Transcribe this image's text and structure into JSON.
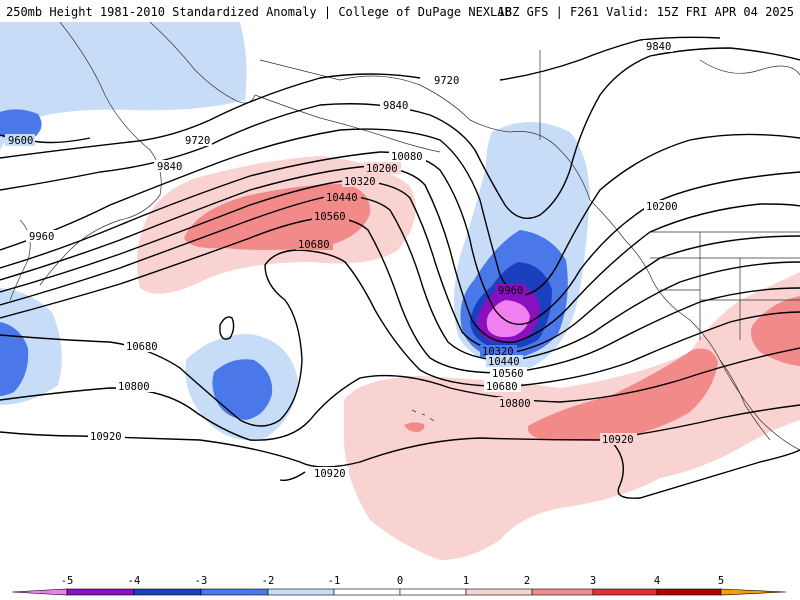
{
  "header": {
    "title": "250mb Height 1981-2010 Standardized Anomaly | College of DuPage NEXLAB",
    "run_info": "18Z GFS | F261 Valid: 15Z FRI APR 04 2025"
  },
  "contour_labels": {
    "c9600": "9600",
    "c9720a": "9720",
    "c9720b": "9720",
    "c9840a": "9840",
    "c9840b": "9840",
    "c9840c": "9840",
    "c9960a": "9960",
    "c9960b": "9960",
    "c10080": "10080",
    "c10200a": "10200",
    "c10200b": "10200",
    "c10320a": "10320",
    "c10320b": "10320",
    "c10440a": "10440",
    "c10440b": "10440",
    "c10560a": "10560",
    "c10560b": "10560",
    "c10680a": "10680",
    "c10680b": "10680",
    "c10680c": "10680",
    "c10800a": "10800",
    "c10800b": "10800",
    "c10920a": "10920",
    "c10920b": "10920",
    "c10920c": "10920"
  },
  "colorbar": {
    "ticks": [
      "-5",
      "-4",
      "-3",
      "-2",
      "-1",
      "0",
      "1",
      "2",
      "3",
      "4",
      "5"
    ],
    "colors": {
      "m5": "#f07ff0",
      "m4": "#8a0fbf",
      "m3": "#1a3fbf",
      "m2": "#4a78e8",
      "m1": "#c7ddf7",
      "p1": "#f9d2d2",
      "p2": "#f28a8a",
      "p3": "#e0303a",
      "p4": "#b00000",
      "p5": "#f5a000"
    }
  }
}
